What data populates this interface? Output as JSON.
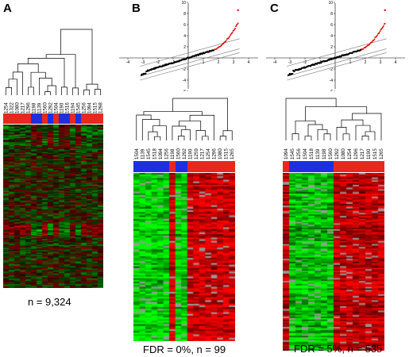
{
  "panels": [
    {
      "label": "A",
      "caption": "n = 9,324",
      "sample_ids": [
        "1254",
        "1322",
        "1080",
        "1217",
        "1296",
        "1198",
        "1139",
        "1560",
        "1292",
        "1504",
        "1190",
        "1516",
        "1194",
        "1545",
        "1256",
        "1094",
        "1515",
        "1298"
      ],
      "sample_groups": [
        "red",
        "red",
        "red",
        "red",
        "red",
        "blue",
        "blue",
        "red",
        "blue",
        "red",
        "blue",
        "blue",
        "red",
        "blue",
        "red",
        "red",
        "red",
        "red"
      ]
    },
    {
      "label": "B",
      "caption": "FDR = 0%, n = 99",
      "sample_ids": [
        "1504",
        "1139",
        "1545",
        "1518",
        "1094",
        "1256",
        "1198",
        "1560",
        "1292",
        "1190",
        "1259",
        "1217",
        "1254",
        "1296",
        "1080",
        "1515",
        "1265"
      ],
      "sample_groups": [
        "blue",
        "blue",
        "blue",
        "blue",
        "blue",
        "blue",
        "red",
        "blue",
        "blue",
        "red",
        "red",
        "red",
        "red",
        "red",
        "red",
        "red",
        "red"
      ],
      "qq_axis": {
        "x_ticks": [
          "-4",
          "-3",
          "-2",
          "-1",
          "0",
          "1",
          "2",
          "3",
          "4"
        ],
        "y_ticks": [
          "10",
          "8",
          "6",
          "4",
          "2",
          "0",
          "-2",
          "-4",
          "-6"
        ]
      }
    },
    {
      "label": "C",
      "caption": "FDR = 5%, n = 535",
      "sample_ids": [
        "1094",
        "1545",
        "1256",
        "1504",
        "1518",
        "1139",
        "1198",
        "1560",
        "1292",
        "1080",
        "1254",
        "1296",
        "1217",
        "1190",
        "1515",
        "1265"
      ],
      "sample_groups": [
        "red",
        "blue",
        "blue",
        "blue",
        "blue",
        "blue",
        "blue",
        "blue",
        "red",
        "red",
        "red",
        "red",
        "red",
        "red",
        "red",
        "red"
      ],
      "qq_axis": {
        "x_ticks": [
          "-4",
          "-3",
          "-2",
          "-1",
          "0",
          "1",
          "2",
          "3",
          "4"
        ],
        "y_ticks": [
          "10",
          "8",
          "6",
          "4",
          "2",
          "0",
          "-2",
          "-4",
          "-6"
        ]
      }
    }
  ],
  "colors": {
    "group_red": "#e8281e",
    "group_blue": "#1f2fe0",
    "up": "#ff1a1a",
    "down": "#22e622",
    "gap": "#9a9a9a",
    "qq_sig": "#e00000",
    "qq_main": "#000000"
  }
}
